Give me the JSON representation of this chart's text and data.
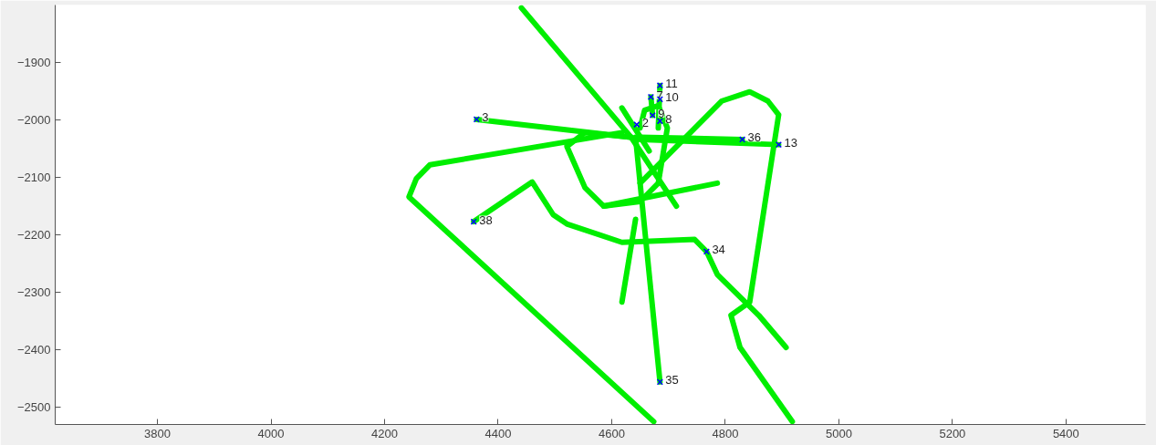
{
  "chart_data": {
    "type": "line",
    "xlim": [
      3620,
      5540
    ],
    "ylim": [
      -2530,
      -1800
    ],
    "xticks": [
      3800,
      4000,
      4200,
      4400,
      4600,
      4800,
      5000,
      5200,
      5400
    ],
    "yticks": [
      -2500,
      -2400,
      -2300,
      -2200,
      -2100,
      -2000,
      -1900
    ],
    "grid": false,
    "line_style": "solid",
    "marker": "none",
    "series": [
      {
        "color": "#00ee00",
        "x": [
          4441,
          4634,
          4714
        ],
        "values": [
          -1805,
          -2030,
          -2150
        ]
      },
      {
        "color": "#00ee00",
        "x": [
          4362,
          4634
        ],
        "values": [
          -1999,
          -2030
        ]
      },
      {
        "color": "#00ee00",
        "x": [
          4618,
          4280,
          4256,
          4243,
          4674
        ],
        "values": [
          -2022,
          -2078,
          -2102,
          -2134,
          -2525
        ]
      },
      {
        "color": "#00ee00",
        "x": [
          4357,
          4460,
          4497,
          4521,
          4618,
          4746,
          4767,
          4786,
          4859,
          4907
        ],
        "values": [
          -2177,
          -2108,
          -2165,
          -2181,
          -2213,
          -2208,
          -2229,
          -2269,
          -2340,
          -2396
        ]
      },
      {
        "color": "#00ee00",
        "x": [
          4650,
          4794,
          4843,
          4875,
          4894,
          4843,
          4810,
          4826,
          4918
        ],
        "values": [
          -2110,
          -1967,
          -1951,
          -1967,
          -1991,
          -2317,
          -2340,
          -2396,
          -2525
        ]
      },
      {
        "color": "#00ee00",
        "x": [
          4894,
          4650
        ],
        "values": [
          -2043,
          -2034
        ]
      },
      {
        "color": "#00ee00",
        "x": [
          4830,
          4650
        ],
        "values": [
          -2034,
          -2030
        ]
      },
      {
        "color": "#00ee00",
        "x": [
          4685,
          4650,
          4642
        ],
        "values": [
          -2456,
          -2110,
          -2030
        ]
      },
      {
        "color": "#00ee00",
        "x": [
          4618,
          4642
        ],
        "values": [
          -2317,
          -2173
        ]
      },
      {
        "color": "#00ee00",
        "x": [
          4650,
          4658,
          4682,
          4698,
          4682,
          4650,
          4586,
          4553,
          4521,
          4553,
          4634
        ],
        "values": [
          -2014,
          -1983,
          -1975,
          -2014,
          -2110,
          -2142,
          -2150,
          -2118,
          -2046,
          -2022,
          -2030
        ]
      },
      {
        "color": "#00ee00",
        "x": [
          4586,
          4786
        ],
        "values": [
          -2150,
          -2110
        ]
      },
      {
        "color": "#00ee00",
        "x": [
          4618,
          4666
        ],
        "values": [
          -1979,
          -2054
        ]
      },
      {
        "color": "#00ee00",
        "x": [
          4685,
          4682
        ],
        "values": [
          -1940,
          -2014
        ]
      },
      {
        "color": "#00ee00",
        "x": [
          4669,
          4672
        ],
        "values": [
          -1960,
          -1992
        ]
      },
      {
        "type": "scatter",
        "marker": "cross",
        "color": "#0000ff",
        "x": [
          4362,
          4357,
          4685,
          4685,
          4669,
          4644,
          4672,
          4685,
          4830,
          4894,
          4767,
          4685
        ],
        "values": [
          -1999,
          -2177,
          -1940,
          -1964,
          -1960,
          -2008,
          -1992,
          -2002,
          -2034,
          -2043,
          -2229,
          -2456
        ]
      }
    ],
    "annotations": [
      {
        "text": "3",
        "x": 4362,
        "y": -1999
      },
      {
        "text": "38",
        "x": 4357,
        "y": -2177
      },
      {
        "text": "11",
        "x": 4685,
        "y": -1940
      },
      {
        "text": "10",
        "x": 4685,
        "y": -1964
      },
      {
        "text": "7",
        "x": 4669,
        "y": -1960
      },
      {
        "text": "2",
        "x": 4644,
        "y": -2008
      },
      {
        "text": "9",
        "x": 4672,
        "y": -1992
      },
      {
        "text": "8",
        "x": 4685,
        "y": -2002
      },
      {
        "text": "36",
        "x": 4830,
        "y": -2034
      },
      {
        "text": "13",
        "x": 4894,
        "y": -2043
      },
      {
        "text": "34",
        "x": 4767,
        "y": -2229
      },
      {
        "text": "35",
        "x": 4685,
        "y": -2456
      }
    ]
  }
}
